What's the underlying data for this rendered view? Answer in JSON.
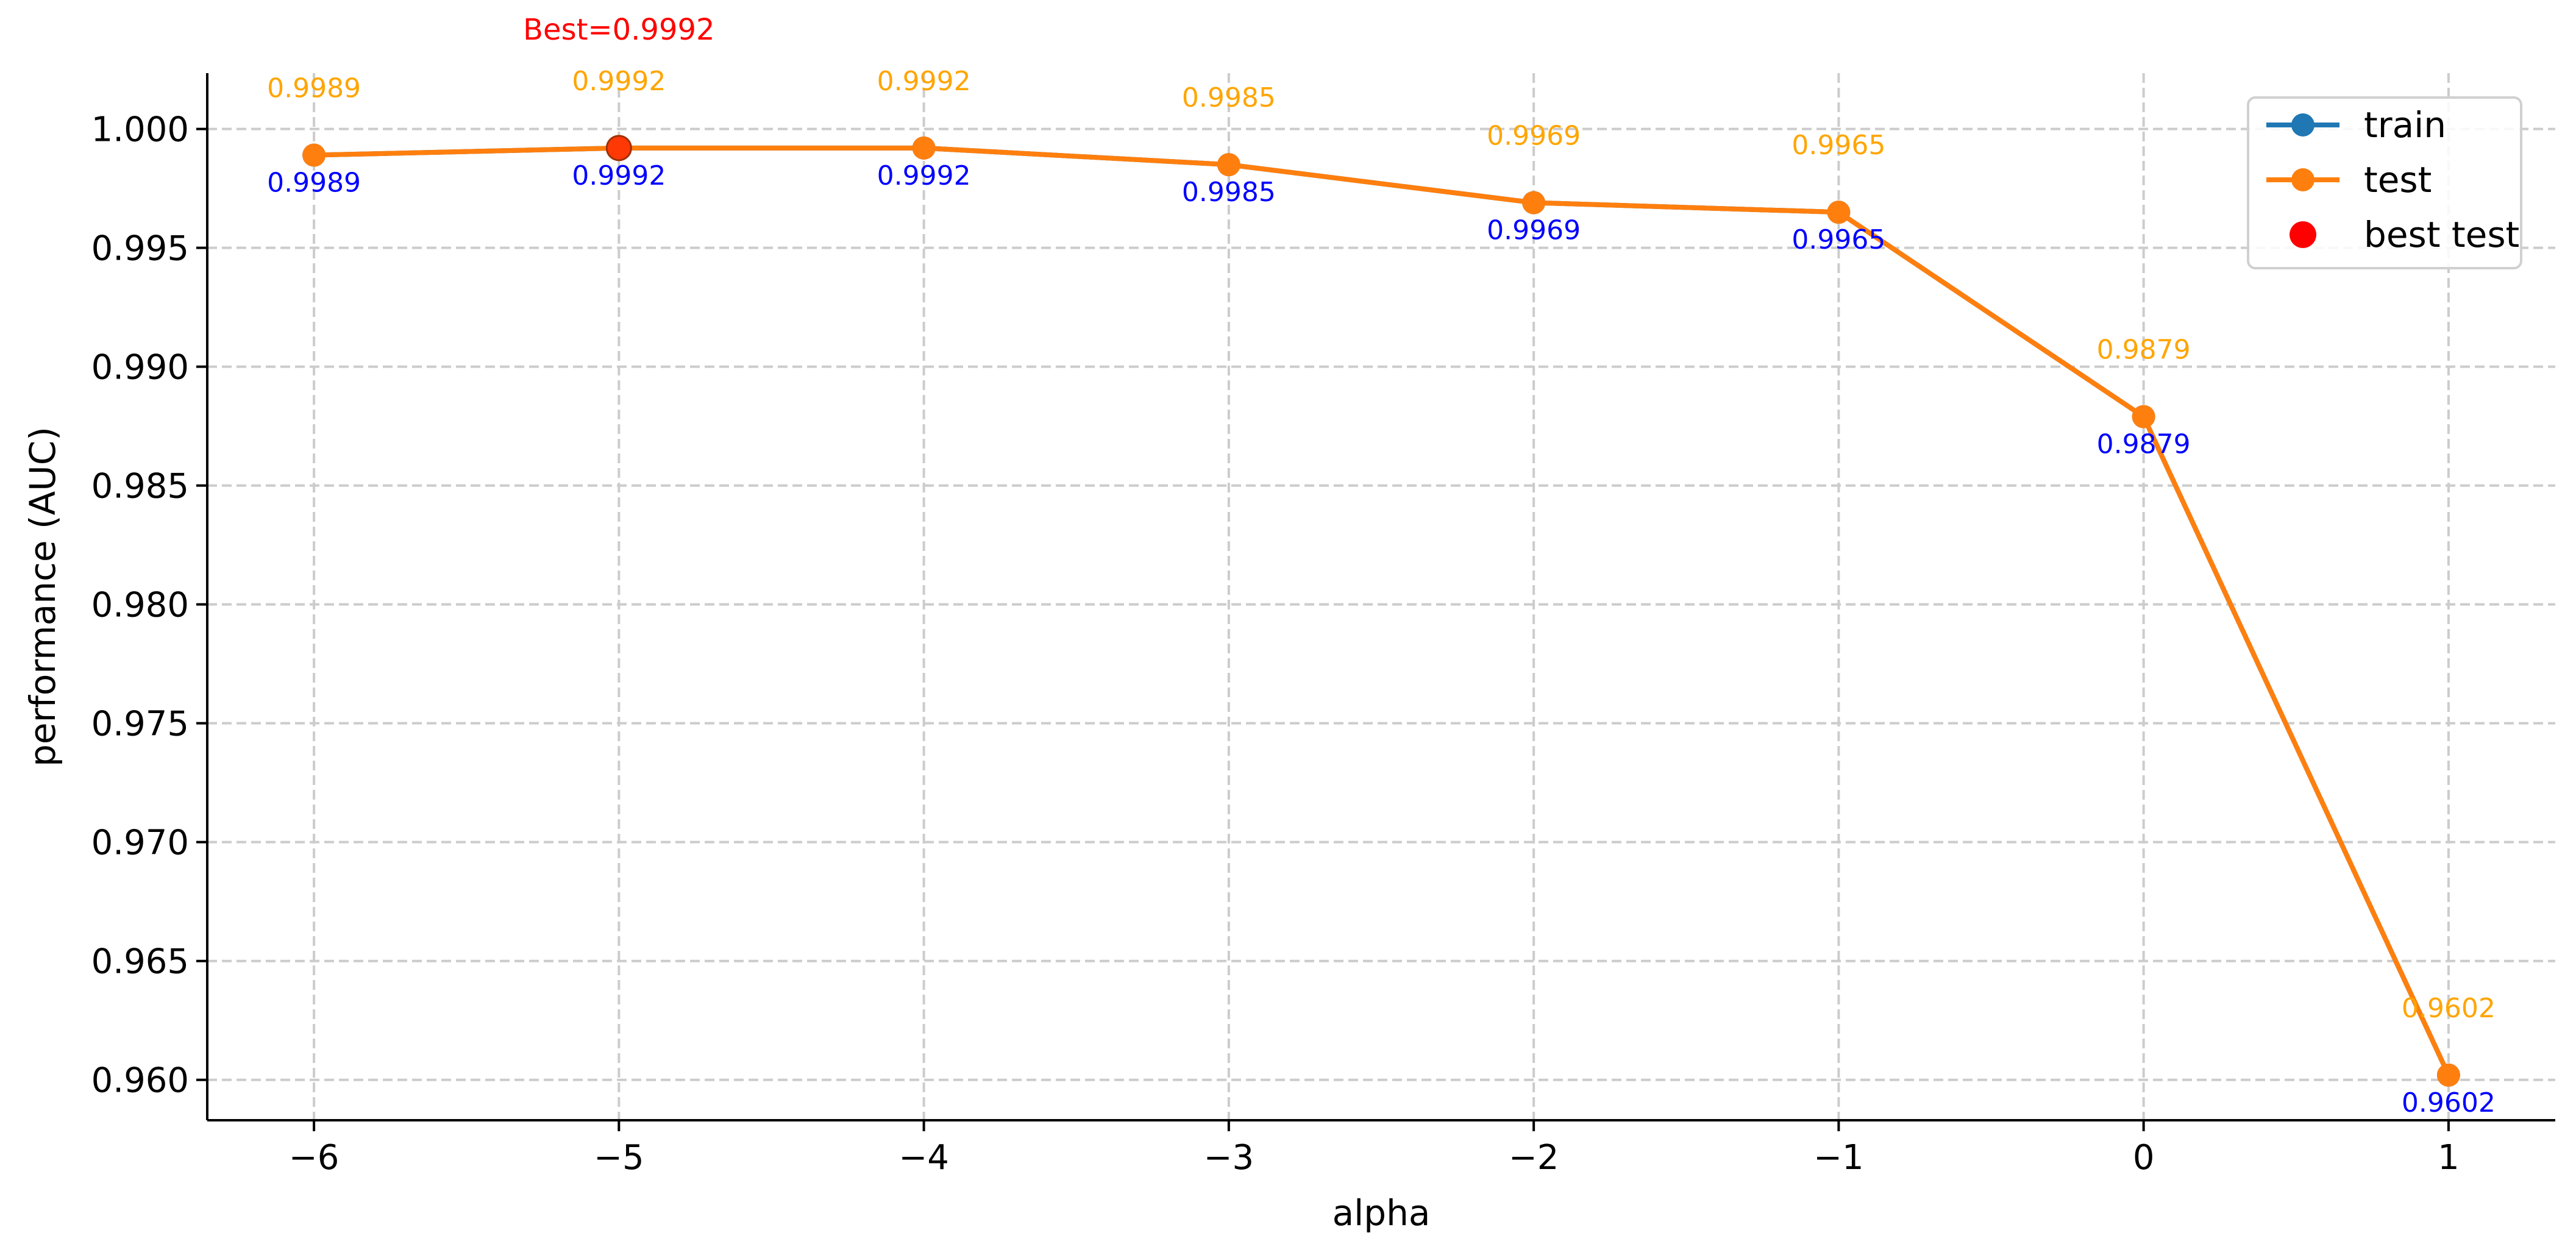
{
  "chart_data": {
    "type": "line",
    "xlabel": "alpha",
    "ylabel": "performance (AUC)",
    "x": [
      -6,
      -5,
      -4,
      -3,
      -2,
      -1,
      0,
      1
    ],
    "xticks": [
      -6,
      -5,
      -4,
      -3,
      -2,
      -1,
      0,
      1
    ],
    "xtick_labels": [
      "−6",
      "−5",
      "−4",
      "−3",
      "−2",
      "−1",
      "0",
      "1"
    ],
    "xlim": [
      -6.35,
      1.35
    ],
    "ylim": [
      0.9583,
      1.00235
    ],
    "yticks": [
      0.96,
      0.965,
      0.97,
      0.975,
      0.98,
      0.985,
      0.99,
      0.995,
      1.0
    ],
    "ytick_labels": [
      "0.960",
      "0.965",
      "0.970",
      "0.975",
      "0.980",
      "0.985",
      "0.990",
      "0.995",
      "1.000"
    ],
    "grid": true,
    "legend_position": "top-right",
    "series": [
      {
        "name": "train",
        "color": "#1f77b4",
        "values": [
          0.9989,
          0.9992,
          0.9992,
          0.9985,
          0.9969,
          0.9965,
          0.9879,
          0.9602
        ],
        "labels": [
          "0.9989",
          "0.9992",
          "0.9992",
          "0.9985",
          "0.9969",
          "0.9965",
          "0.9879",
          "0.9602"
        ],
        "label_color": "#0000ff"
      },
      {
        "name": "test",
        "color": "#ff7f0e",
        "values": [
          0.9989,
          0.9992,
          0.9992,
          0.9985,
          0.9969,
          0.9965,
          0.9879,
          0.9602
        ],
        "labels": [
          "0.9989",
          "0.9992",
          "0.9992",
          "0.9985",
          "0.9969",
          "0.9965",
          "0.9879",
          "0.9602"
        ],
        "label_color": "#ffa500"
      }
    ],
    "best": {
      "name": "best test",
      "x": -5,
      "y": 0.9992,
      "label": "Best=0.9992",
      "color": "#ff0000"
    }
  }
}
